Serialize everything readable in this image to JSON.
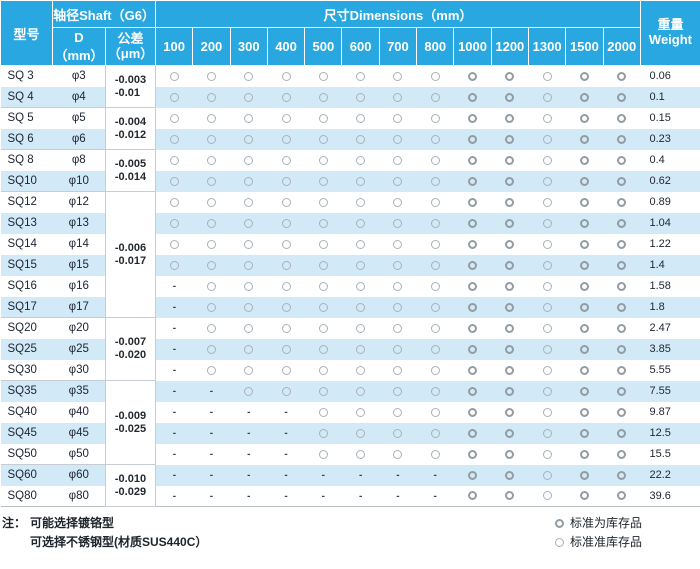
{
  "header": {
    "model_col": "型号",
    "shaft_group": "轴径Shaft（G6）",
    "d_col": "D（mm）",
    "tol_line1": "公差",
    "tol_line2": "（μm）",
    "dims_group": "尺寸Dimensions（mm）",
    "dim_cols": [
      "100",
      "200",
      "300",
      "400",
      "500",
      "600",
      "700",
      "800",
      "1000",
      "1200",
      "1300",
      "1500",
      "2000"
    ],
    "weight_line1": "重量",
    "weight_line2": "Weight"
  },
  "rows": [
    {
      "model": "SQ 3",
      "d": "φ3",
      "dashes": 0,
      "weight": "0.06"
    },
    {
      "model": "SQ 4",
      "d": "φ4",
      "dashes": 0,
      "weight": "0.1"
    },
    {
      "model": "SQ 5",
      "d": "φ5",
      "dashes": 0,
      "weight": "0.15"
    },
    {
      "model": "SQ 6",
      "d": "φ6",
      "dashes": 0,
      "weight": "0.23"
    },
    {
      "model": "SQ 8",
      "d": "φ8",
      "dashes": 0,
      "weight": "0.4"
    },
    {
      "model": "SQ10",
      "d": "φ10",
      "dashes": 0,
      "weight": "0.62"
    },
    {
      "model": "SQ12",
      "d": "φ12",
      "dashes": 0,
      "weight": "0.89"
    },
    {
      "model": "SQ13",
      "d": "φ13",
      "dashes": 0,
      "weight": "1.04"
    },
    {
      "model": "SQ14",
      "d": "φ14",
      "dashes": 0,
      "weight": "1.22"
    },
    {
      "model": "SQ15",
      "d": "φ15",
      "dashes": 0,
      "weight": "1.4"
    },
    {
      "model": "SQ16",
      "d": "φ16",
      "dashes": 1,
      "weight": "1.58"
    },
    {
      "model": "SQ17",
      "d": "φ17",
      "dashes": 1,
      "weight": "1.8"
    },
    {
      "model": "SQ20",
      "d": "φ20",
      "dashes": 1,
      "weight": "2.47"
    },
    {
      "model": "SQ25",
      "d": "φ25",
      "dashes": 1,
      "weight": "3.85"
    },
    {
      "model": "SQ30",
      "d": "φ30",
      "dashes": 1,
      "weight": "5.55"
    },
    {
      "model": "SQ35",
      "d": "φ35",
      "dashes": 2,
      "weight": "7.55"
    },
    {
      "model": "SQ40",
      "d": "φ40",
      "dashes": 4,
      "weight": "9.87"
    },
    {
      "model": "SQ45",
      "d": "φ45",
      "dashes": 4,
      "weight": "12.5"
    },
    {
      "model": "SQ50",
      "d": "φ50",
      "dashes": 4,
      "weight": "15.5"
    },
    {
      "model": "SQ60",
      "d": "φ60",
      "dashes": 8,
      "weight": "22.2"
    },
    {
      "model": "SQ80",
      "d": "φ80",
      "dashes": 8,
      "weight": "39.6"
    }
  ],
  "tolerance_groups": [
    {
      "start": 0,
      "span": 2,
      "upper": "-0.003",
      "lower": "-0.01"
    },
    {
      "start": 2,
      "span": 2,
      "upper": "-0.004",
      "lower": "-0.012"
    },
    {
      "start": 4,
      "span": 2,
      "upper": "-0.005",
      "lower": "-0.014"
    },
    {
      "start": 6,
      "span": 6,
      "upper": "-0.006",
      "lower": "-0.017"
    },
    {
      "start": 12,
      "span": 3,
      "upper": "-0.007",
      "lower": "-0.020"
    },
    {
      "start": 15,
      "span": 4,
      "upper": "-0.009",
      "lower": "-0.025"
    },
    {
      "start": 19,
      "span": 2,
      "upper": "-0.010",
      "lower": "-0.029"
    }
  ],
  "stock_dim_indices": [
    8,
    9,
    11,
    12
  ],
  "cell_symbols": {
    "available": "○",
    "not_available": "-"
  },
  "notes": {
    "prefix": "注：",
    "line1": "可能选择镀铬型",
    "line2": "可选择不锈钢型(材质SUS440C）"
  },
  "legend": [
    {
      "symbol": "◎",
      "label": "标准为库存品"
    },
    {
      "symbol": "○",
      "label": "标准准库存品"
    }
  ],
  "colors": {
    "header_blue": "#29a7e0",
    "row_stripe": "#d2e9f8",
    "grid_gray": "#c6ccd1",
    "circle_ring": "#a9b2b8"
  }
}
